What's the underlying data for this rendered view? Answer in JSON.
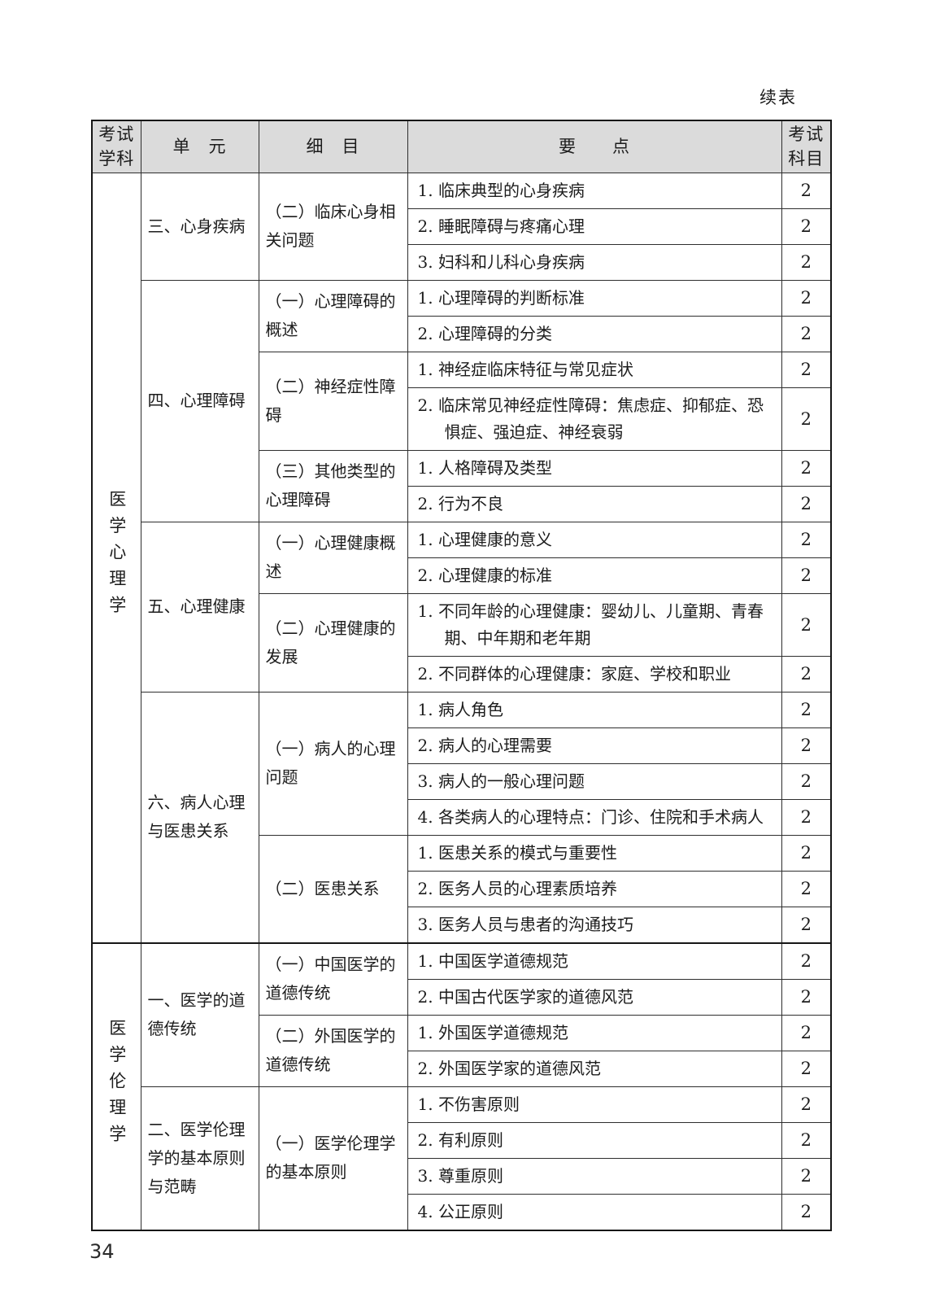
{
  "page": {
    "continued_label": "续表",
    "page_number": "34"
  },
  "table": {
    "headers": {
      "subject": "考试\n学科",
      "unit": "单　元",
      "detail": "细　目",
      "points": "要　　点",
      "score": "考试\n科目"
    },
    "sections": [
      {
        "subject": "医学心理学",
        "units": [
          {
            "name": "三、心身疾病",
            "details": [
              {
                "name": "（二）临床心身相关问题",
                "points": [
                  {
                    "text": "1. 临床典型的心身疾病",
                    "score": "2"
                  },
                  {
                    "text": "2. 睡眠障碍与疼痛心理",
                    "score": "2"
                  },
                  {
                    "text": "3. 妇科和儿科心身疾病",
                    "score": "2"
                  }
                ]
              }
            ]
          },
          {
            "name": "四、心理障碍",
            "details": [
              {
                "name": "（一）心理障碍的概述",
                "points": [
                  {
                    "text": "1. 心理障碍的判断标准",
                    "score": "2"
                  },
                  {
                    "text": "2. 心理障碍的分类",
                    "score": "2"
                  }
                ]
              },
              {
                "name": "（二）神经症性障碍",
                "points": [
                  {
                    "text": "1. 神经症临床特征与常见症状",
                    "score": "2"
                  },
                  {
                    "text": "2. 临床常见神经症性障碍：焦虑症、抑郁症、恐惧症、强迫症、神经衰弱",
                    "score": "2"
                  }
                ]
              },
              {
                "name": "（三）其他类型的心理障碍",
                "points": [
                  {
                    "text": "1. 人格障碍及类型",
                    "score": "2"
                  },
                  {
                    "text": "2. 行为不良",
                    "score": "2"
                  }
                ]
              }
            ]
          },
          {
            "name": "五、心理健康",
            "details": [
              {
                "name": "（一）心理健康概述",
                "points": [
                  {
                    "text": "1. 心理健康的意义",
                    "score": "2"
                  },
                  {
                    "text": "2. 心理健康的标准",
                    "score": "2"
                  }
                ]
              },
              {
                "name": "（二）心理健康的发展",
                "points": [
                  {
                    "text": "1. 不同年龄的心理健康：婴幼儿、儿童期、青春期、中年期和老年期",
                    "score": "2"
                  },
                  {
                    "text": "2. 不同群体的心理健康：家庭、学校和职业",
                    "score": "2"
                  }
                ]
              }
            ]
          },
          {
            "name": "六、病人心理与医患关系",
            "details": [
              {
                "name": "（一）病人的心理问题",
                "points": [
                  {
                    "text": "1. 病人角色",
                    "score": "2"
                  },
                  {
                    "text": "2. 病人的心理需要",
                    "score": "2"
                  },
                  {
                    "text": "3. 病人的一般心理问题",
                    "score": "2"
                  },
                  {
                    "text": "4. 各类病人的心理特点：门诊、住院和手术病人",
                    "score": "2"
                  }
                ]
              },
              {
                "name": "（二）医患关系",
                "points": [
                  {
                    "text": "1. 医患关系的模式与重要性",
                    "score": "2"
                  },
                  {
                    "text": "2. 医务人员的心理素质培养",
                    "score": "2"
                  },
                  {
                    "text": "3. 医务人员与患者的沟通技巧",
                    "score": "2"
                  }
                ]
              }
            ]
          }
        ]
      },
      {
        "subject": "医学伦理学",
        "units": [
          {
            "name": "一、医学的道德传统",
            "details": [
              {
                "name": "（一）中国医学的道德传统",
                "points": [
                  {
                    "text": "1. 中国医学道德规范",
                    "score": "2"
                  },
                  {
                    "text": "2. 中国古代医学家的道德风范",
                    "score": "2"
                  }
                ]
              },
              {
                "name": "（二）外国医学的道德传统",
                "points": [
                  {
                    "text": "1. 外国医学道德规范",
                    "score": "2"
                  },
                  {
                    "text": "2. 外国医学家的道德风范",
                    "score": "2"
                  }
                ]
              }
            ]
          },
          {
            "name": "二、医学伦理学的基本原则与范畴",
            "details": [
              {
                "name": "（一）医学伦理学的基本原则",
                "points": [
                  {
                    "text": "1. 不伤害原则",
                    "score": "2"
                  },
                  {
                    "text": "2. 有利原则",
                    "score": "2"
                  },
                  {
                    "text": "3. 尊重原则",
                    "score": "2"
                  },
                  {
                    "text": "4. 公正原则",
                    "score": "2"
                  }
                ]
              }
            ]
          }
        ]
      }
    ]
  }
}
